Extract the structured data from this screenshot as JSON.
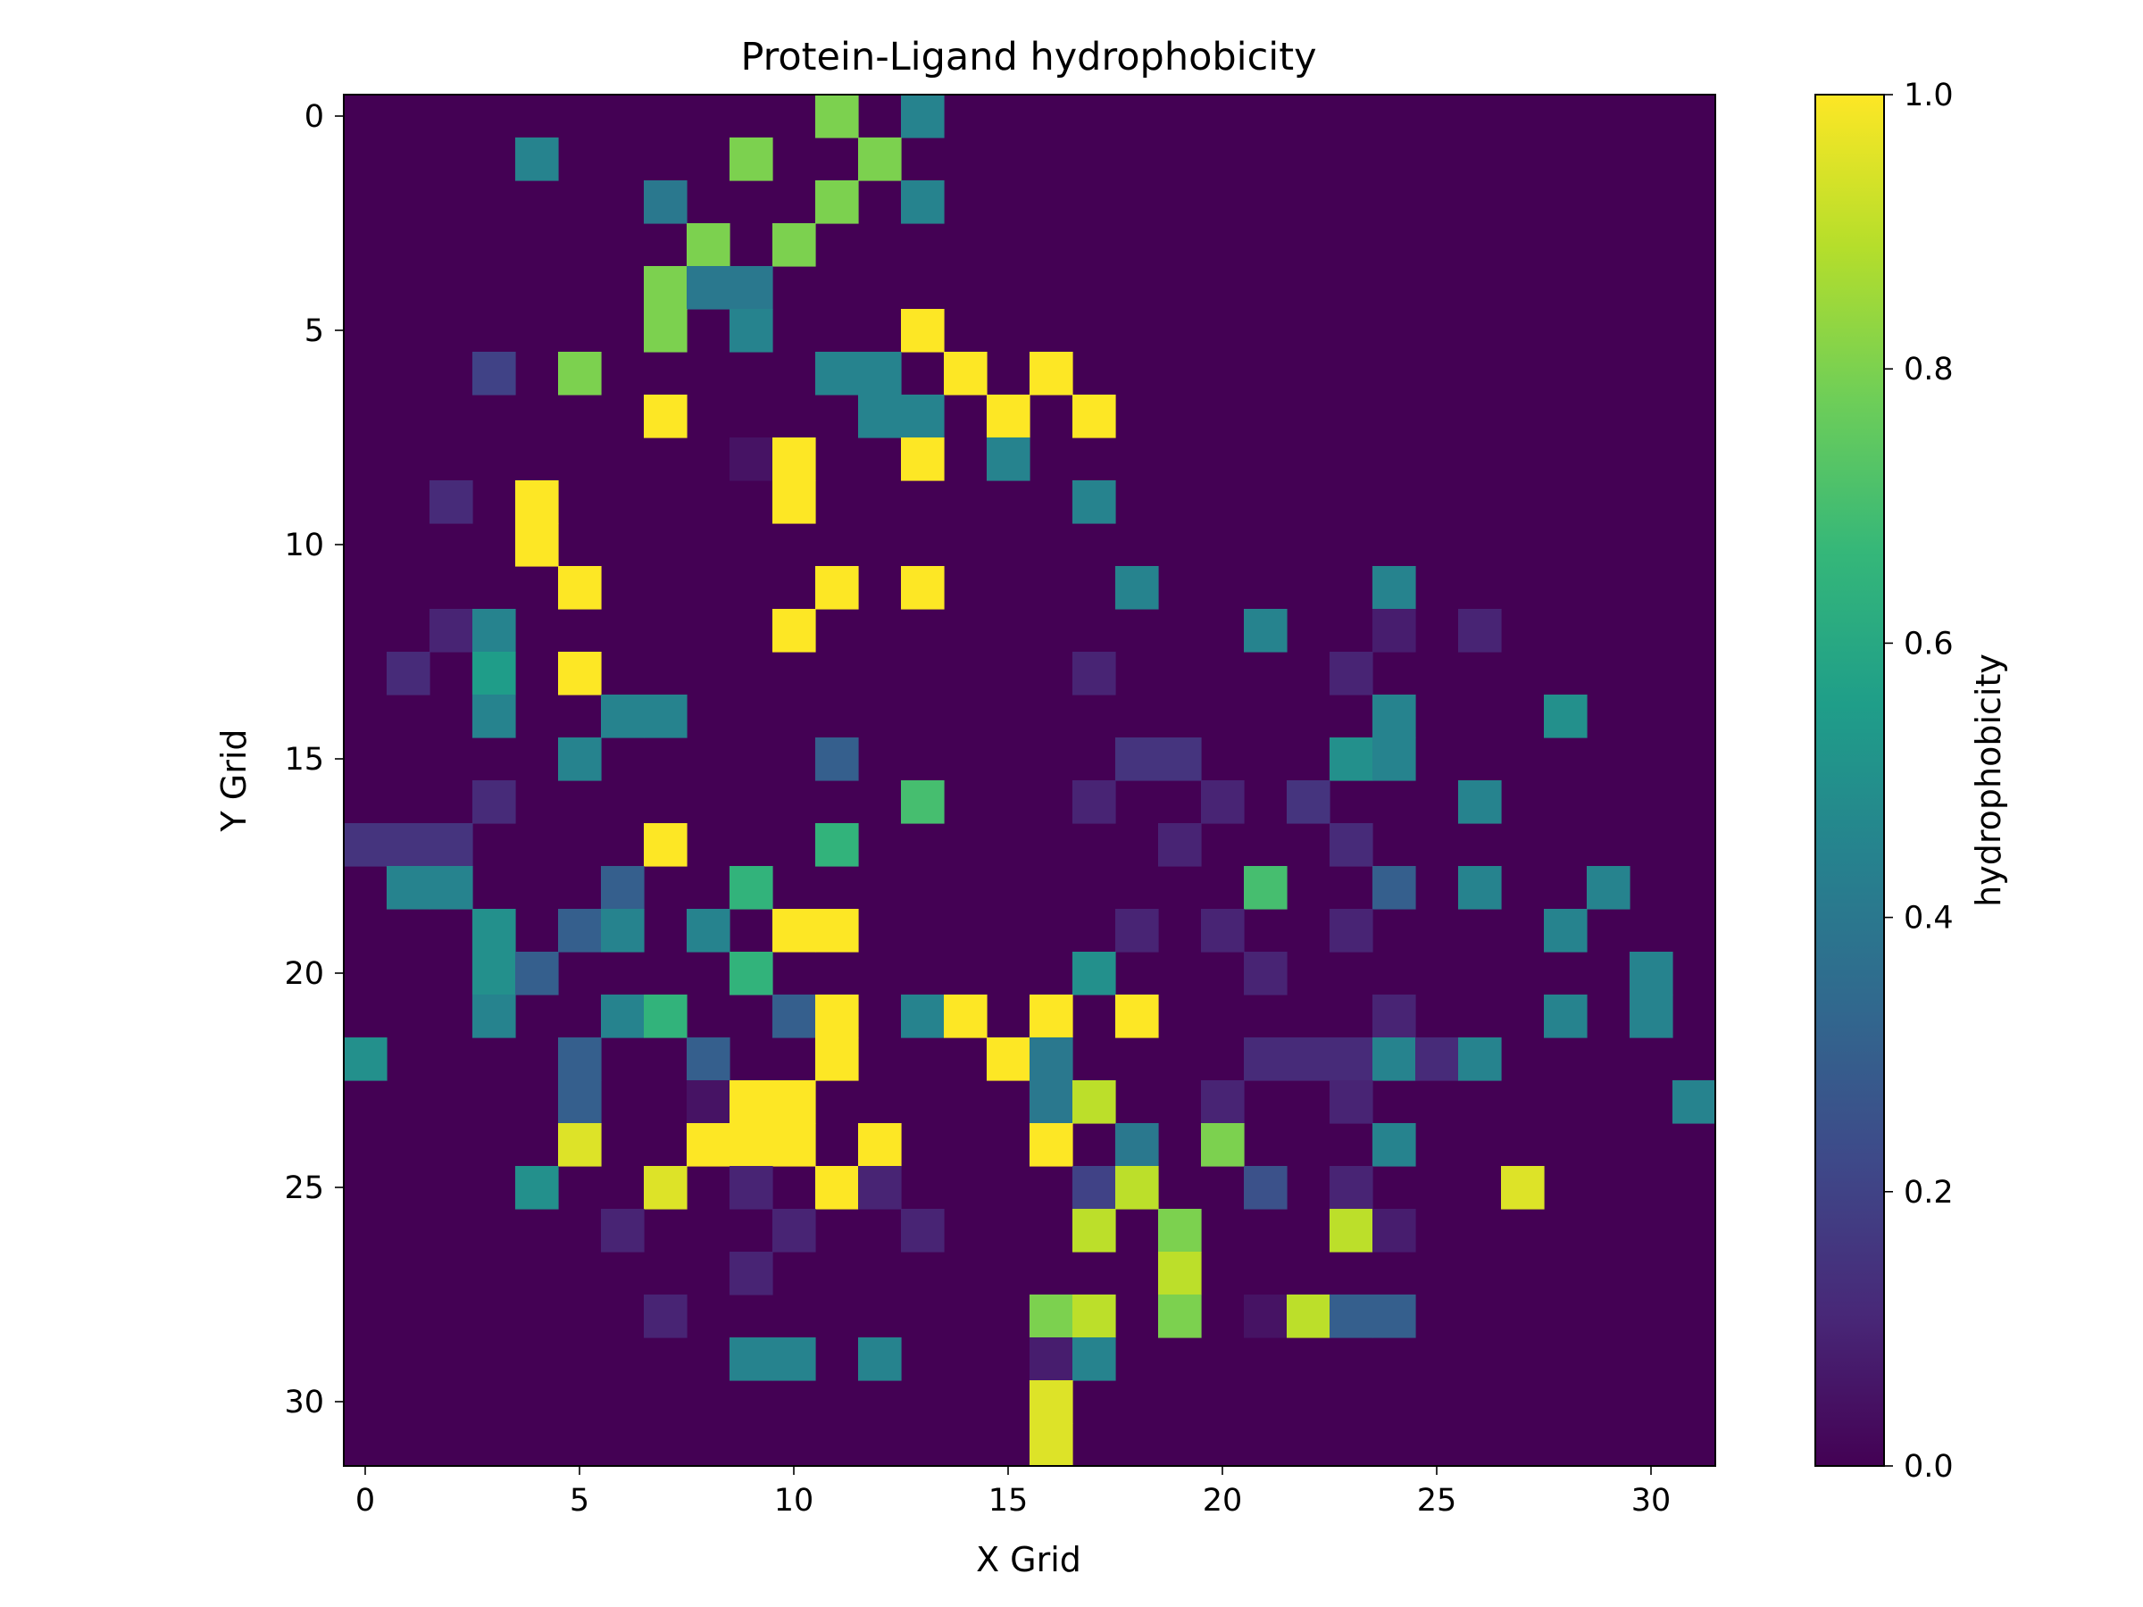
{
  "chart_data": {
    "type": "heatmap",
    "title": "Protein-Ligand hydrophobicity",
    "xlabel": "X Grid",
    "ylabel": "Y Grid",
    "colorbar_label": "hydrophobicity",
    "xlim": [
      -0.5,
      31.5
    ],
    "ylim": [
      31.5,
      -0.5
    ],
    "x_ticks": [
      0,
      5,
      10,
      15,
      20,
      25,
      30
    ],
    "y_ticks": [
      0,
      5,
      10,
      15,
      20,
      25,
      30
    ],
    "colorbar_ticks": [
      "0.0",
      "0.2",
      "0.4",
      "0.6",
      "0.8",
      "1.0"
    ],
    "value_range": [
      0.0,
      1.0
    ],
    "colormap": "viridis",
    "colormap_stops": [
      "#440154",
      "#482878",
      "#3e4989",
      "#31688e",
      "#26828e",
      "#1f9e89",
      "#35b779",
      "#6ece58",
      "#b5de2b",
      "#fde725"
    ],
    "grid_size": [
      32,
      32
    ],
    "nonzero_cells": [
      [
        11,
        0,
        0.8
      ],
      [
        13,
        0,
        0.45
      ],
      [
        4,
        1,
        0.45
      ],
      [
        9,
        1,
        0.8
      ],
      [
        12,
        1,
        0.8
      ],
      [
        7,
        2,
        0.4
      ],
      [
        11,
        2,
        0.8
      ],
      [
        13,
        2,
        0.45
      ],
      [
        8,
        3,
        0.8
      ],
      [
        10,
        3,
        0.8
      ],
      [
        7,
        4,
        0.8
      ],
      [
        8,
        4,
        0.4
      ],
      [
        9,
        4,
        0.4
      ],
      [
        7,
        5,
        0.8
      ],
      [
        9,
        5,
        0.45
      ],
      [
        13,
        5,
        1.0
      ],
      [
        3,
        6,
        0.2
      ],
      [
        5,
        6,
        0.8
      ],
      [
        11,
        6,
        0.45
      ],
      [
        12,
        6,
        0.45
      ],
      [
        14,
        6,
        1.0
      ],
      [
        16,
        6,
        1.0
      ],
      [
        7,
        7,
        1.0
      ],
      [
        12,
        7,
        0.45
      ],
      [
        13,
        7,
        0.45
      ],
      [
        15,
        7,
        1.0
      ],
      [
        17,
        7,
        1.0
      ],
      [
        9,
        8,
        0.05
      ],
      [
        10,
        8,
        1.0
      ],
      [
        13,
        8,
        1.0
      ],
      [
        15,
        8,
        0.45
      ],
      [
        2,
        9,
        0.12
      ],
      [
        4,
        9,
        1.0
      ],
      [
        10,
        9,
        1.0
      ],
      [
        17,
        9,
        0.45
      ],
      [
        4,
        10,
        1.0
      ],
      [
        5,
        11,
        1.0
      ],
      [
        11,
        11,
        1.0
      ],
      [
        13,
        11,
        1.0
      ],
      [
        18,
        11,
        0.45
      ],
      [
        24,
        11,
        0.45
      ],
      [
        2,
        12,
        0.1
      ],
      [
        3,
        12,
        0.45
      ],
      [
        10,
        12,
        1.0
      ],
      [
        21,
        12,
        0.45
      ],
      [
        24,
        12,
        0.08
      ],
      [
        26,
        12,
        0.1
      ],
      [
        1,
        13,
        0.12
      ],
      [
        3,
        13,
        0.55
      ],
      [
        5,
        13,
        1.0
      ],
      [
        17,
        13,
        0.1
      ],
      [
        23,
        13,
        0.1
      ],
      [
        3,
        14,
        0.45
      ],
      [
        6,
        14,
        0.45
      ],
      [
        7,
        14,
        0.45
      ],
      [
        24,
        14,
        0.45
      ],
      [
        28,
        14,
        0.5
      ],
      [
        5,
        15,
        0.45
      ],
      [
        11,
        15,
        0.3
      ],
      [
        18,
        15,
        0.15
      ],
      [
        19,
        15,
        0.15
      ],
      [
        23,
        15,
        0.5
      ],
      [
        24,
        15,
        0.45
      ],
      [
        3,
        16,
        0.12
      ],
      [
        13,
        16,
        0.7
      ],
      [
        17,
        16,
        0.1
      ],
      [
        20,
        16,
        0.1
      ],
      [
        22,
        16,
        0.15
      ],
      [
        26,
        16,
        0.45
      ],
      [
        0,
        17,
        0.15
      ],
      [
        1,
        17,
        0.15
      ],
      [
        2,
        17,
        0.15
      ],
      [
        7,
        17,
        1.0
      ],
      [
        11,
        17,
        0.65
      ],
      [
        19,
        17,
        0.1
      ],
      [
        23,
        17,
        0.12
      ],
      [
        1,
        18,
        0.45
      ],
      [
        2,
        18,
        0.45
      ],
      [
        6,
        18,
        0.3
      ],
      [
        9,
        18,
        0.65
      ],
      [
        21,
        18,
        0.7
      ],
      [
        24,
        18,
        0.3
      ],
      [
        26,
        18,
        0.45
      ],
      [
        29,
        18,
        0.45
      ],
      [
        3,
        19,
        0.5
      ],
      [
        5,
        19,
        0.3
      ],
      [
        6,
        19,
        0.45
      ],
      [
        8,
        19,
        0.45
      ],
      [
        10,
        19,
        1.0
      ],
      [
        11,
        19,
        1.0
      ],
      [
        18,
        19,
        0.1
      ],
      [
        20,
        19,
        0.1
      ],
      [
        23,
        19,
        0.1
      ],
      [
        28,
        19,
        0.45
      ],
      [
        3,
        20,
        0.5
      ],
      [
        4,
        20,
        0.3
      ],
      [
        9,
        20,
        0.65
      ],
      [
        17,
        20,
        0.5
      ],
      [
        21,
        20,
        0.1
      ],
      [
        30,
        20,
        0.45
      ],
      [
        3,
        21,
        0.45
      ],
      [
        6,
        21,
        0.45
      ],
      [
        7,
        21,
        0.65
      ],
      [
        10,
        21,
        0.3
      ],
      [
        11,
        21,
        1.0
      ],
      [
        13,
        21,
        0.45
      ],
      [
        14,
        21,
        1.0
      ],
      [
        16,
        21,
        1.0
      ],
      [
        18,
        21,
        1.0
      ],
      [
        24,
        21,
        0.1
      ],
      [
        28,
        21,
        0.45
      ],
      [
        30,
        21,
        0.45
      ],
      [
        0,
        22,
        0.5
      ],
      [
        5,
        22,
        0.3
      ],
      [
        8,
        22,
        0.3
      ],
      [
        11,
        22,
        1.0
      ],
      [
        15,
        22,
        1.0
      ],
      [
        16,
        22,
        0.4
      ],
      [
        21,
        22,
        0.12
      ],
      [
        22,
        22,
        0.12
      ],
      [
        23,
        22,
        0.12
      ],
      [
        24,
        22,
        0.45
      ],
      [
        25,
        22,
        0.12
      ],
      [
        26,
        22,
        0.45
      ],
      [
        5,
        23,
        0.3
      ],
      [
        8,
        23,
        0.05
      ],
      [
        9,
        23,
        1.0
      ],
      [
        10,
        23,
        1.0
      ],
      [
        16,
        23,
        0.4
      ],
      [
        17,
        23,
        0.9
      ],
      [
        20,
        23,
        0.1
      ],
      [
        23,
        23,
        0.1
      ],
      [
        31,
        23,
        0.45
      ],
      [
        5,
        24,
        0.95
      ],
      [
        8,
        24,
        1.0
      ],
      [
        9,
        24,
        1.0
      ],
      [
        10,
        24,
        1.0
      ],
      [
        12,
        24,
        1.0
      ],
      [
        16,
        24,
        1.0
      ],
      [
        18,
        24,
        0.4
      ],
      [
        20,
        24,
        0.8
      ],
      [
        24,
        24,
        0.45
      ],
      [
        4,
        25,
        0.5
      ],
      [
        7,
        25,
        0.95
      ],
      [
        9,
        25,
        0.1
      ],
      [
        11,
        25,
        1.0
      ],
      [
        12,
        25,
        0.1
      ],
      [
        17,
        25,
        0.2
      ],
      [
        18,
        25,
        0.9
      ],
      [
        21,
        25,
        0.25
      ],
      [
        23,
        25,
        0.1
      ],
      [
        27,
        25,
        0.95
      ],
      [
        6,
        26,
        0.1
      ],
      [
        10,
        26,
        0.1
      ],
      [
        13,
        26,
        0.1
      ],
      [
        17,
        26,
        0.9
      ],
      [
        19,
        26,
        0.8
      ],
      [
        23,
        26,
        0.9
      ],
      [
        24,
        26,
        0.08
      ],
      [
        9,
        27,
        0.1
      ],
      [
        19,
        27,
        0.9
      ],
      [
        7,
        28,
        0.1
      ],
      [
        16,
        28,
        0.8
      ],
      [
        17,
        28,
        0.9
      ],
      [
        19,
        28,
        0.8
      ],
      [
        21,
        28,
        0.05
      ],
      [
        22,
        28,
        0.9
      ],
      [
        23,
        28,
        0.3
      ],
      [
        24,
        28,
        0.3
      ],
      [
        9,
        29,
        0.45
      ],
      [
        10,
        29,
        0.45
      ],
      [
        12,
        29,
        0.45
      ],
      [
        16,
        29,
        0.08
      ],
      [
        17,
        29,
        0.45
      ],
      [
        16,
        30,
        0.95
      ],
      [
        16,
        31,
        0.95
      ]
    ]
  }
}
